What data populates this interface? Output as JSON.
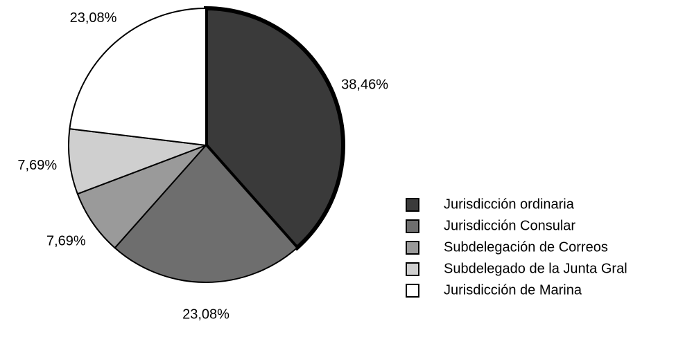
{
  "chart_data": {
    "type": "pie",
    "categories": [
      "Jurisdicción ordinaria",
      "Jurisdicción Consular",
      "Subdelegación de Correos",
      "Subdelegado de la Junta Gral",
      "Jurisdicción de Marina"
    ],
    "values": [
      38.46,
      23.08,
      7.69,
      7.69,
      23.08
    ],
    "value_labels": [
      "38,46%",
      "23,08%",
      "7,69%",
      "7,69%",
      "23,08%"
    ],
    "colors": [
      "#3a3a3a",
      "#6e6e6e",
      "#9a9a9a",
      "#cfcfcf",
      "#ffffff"
    ],
    "legend": "right"
  }
}
